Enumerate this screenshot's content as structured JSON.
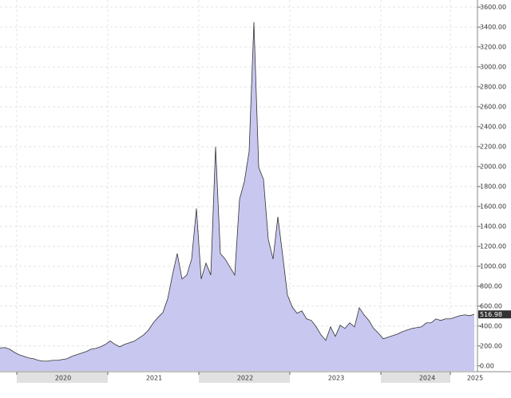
{
  "chart_data": {
    "type": "area",
    "categories": [
      null,
      null,
      null,
      null,
      null,
      null,
      null,
      null,
      null,
      null,
      null,
      null,
      null,
      "2020",
      null,
      null,
      null,
      null,
      null,
      null,
      null,
      null,
      null,
      null,
      null,
      null,
      null,
      null,
      null,
      null,
      null,
      null,
      "2021",
      null,
      null,
      null,
      null,
      null,
      null,
      null,
      null,
      null,
      null,
      null,
      null,
      null,
      null,
      null,
      null,
      null,
      null,
      "2022",
      null,
      null,
      null,
      null,
      null,
      null,
      null,
      null,
      null,
      null,
      null,
      null,
      null,
      null,
      null,
      null,
      null,
      null,
      "2023",
      null,
      null,
      null,
      null,
      null,
      null,
      null,
      null,
      null,
      null,
      null,
      null,
      null,
      null,
      null,
      null,
      null,
      null,
      "2024",
      null,
      null,
      null,
      null,
      null,
      null,
      null,
      null,
      null,
      "2025"
    ],
    "values": [
      180,
      184,
      168,
      136,
      112,
      96,
      80,
      72,
      56,
      48,
      48,
      56,
      56,
      64,
      72,
      96,
      112,
      128,
      144,
      168,
      176,
      192,
      216,
      250,
      216,
      192,
      216,
      232,
      248,
      280,
      312,
      360,
      432,
      488,
      536,
      672,
      912,
      1128,
      872,
      912,
      1072,
      1580,
      872,
      1032,
      912,
      2200,
      1128,
      1072,
      992,
      912,
      1672,
      1848,
      2152,
      3450,
      1992,
      1872,
      1272,
      1072,
      1496,
      1112,
      712,
      592,
      528,
      552,
      472,
      456,
      392,
      312,
      256,
      392,
      296,
      408,
      376,
      432,
      392,
      584,
      512,
      456,
      376,
      328,
      272,
      288,
      304,
      320,
      344,
      360,
      376,
      384,
      392,
      432,
      432,
      472,
      456,
      472,
      472,
      488,
      504,
      512,
      504,
      516.98
    ],
    "color": "#c7c7f0",
    "line_color": "#333333",
    "ylim": [
      -50,
      3600
    ],
    "yticks": [
      {
        "value": 0,
        "label": "0.00"
      },
      {
        "value": 200,
        "label": "200.00"
      },
      {
        "value": 400,
        "label": "400.00"
      },
      {
        "value": 600,
        "label": "600.00"
      },
      {
        "value": 800,
        "label": "800.00"
      },
      {
        "value": 1000,
        "label": "1000.00"
      },
      {
        "value": 1200,
        "label": "1200.00"
      },
      {
        "value": 1400,
        "label": "1400.00"
      },
      {
        "value": 1600,
        "label": "1600.00"
      },
      {
        "value": 1800,
        "label": "1800.00"
      },
      {
        "value": 2000,
        "label": "2000.00"
      },
      {
        "value": 2200,
        "label": "2200.00"
      },
      {
        "value": 2400,
        "label": "2400.00"
      },
      {
        "value": 2600,
        "label": "2600.00"
      },
      {
        "value": 2800,
        "label": "2800.00"
      },
      {
        "value": 3000,
        "label": "3000.00"
      },
      {
        "value": 3200,
        "label": "3200.00"
      },
      {
        "value": 3400,
        "label": "3400.00"
      },
      {
        "value": 3600,
        "label": "3600.00"
      }
    ],
    "grid": true
  }
}
